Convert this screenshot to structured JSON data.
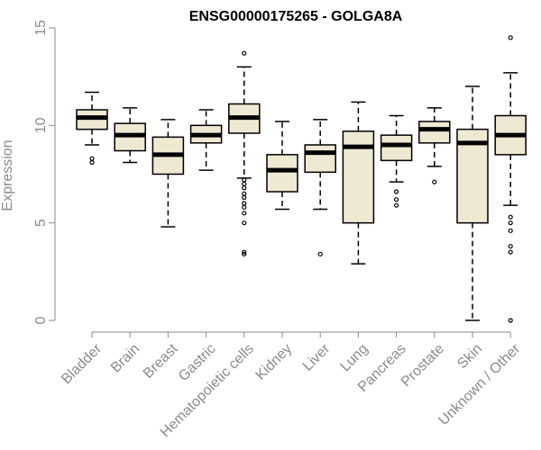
{
  "colors": {
    "box_fill": "#efe8d2",
    "stroke": "#000000",
    "axis_text": "#8a8a8a",
    "axis_line": "#8a8a8a",
    "title": "#000000"
  },
  "chart_data": {
    "type": "boxplot",
    "title": "ENSG00000175265 - GOLGA8A",
    "xlabel": "",
    "ylabel": "Expression",
    "ylim": [
      0,
      15
    ],
    "yticks": [
      0,
      5,
      10,
      15
    ],
    "categories": [
      "Bladder",
      "Brain",
      "Breast",
      "Gastric",
      "Hematopoietic cells",
      "Kidney",
      "Liver",
      "Lung",
      "Pancreas",
      "Prostate",
      "Skin",
      "Unknown / Other"
    ],
    "boxes": [
      {
        "whisker_low": 9.0,
        "q1": 9.8,
        "median": 10.4,
        "q3": 10.8,
        "whisker_high": 11.7,
        "outliers": [
          8.1,
          8.3
        ]
      },
      {
        "whisker_low": 8.1,
        "q1": 8.7,
        "median": 9.5,
        "q3": 10.1,
        "whisker_high": 10.9,
        "outliers": []
      },
      {
        "whisker_low": 4.8,
        "q1": 7.5,
        "median": 8.5,
        "q3": 9.4,
        "whisker_high": 10.3,
        "outliers": []
      },
      {
        "whisker_low": 7.7,
        "q1": 9.1,
        "median": 9.5,
        "q3": 10.0,
        "whisker_high": 10.8,
        "outliers": []
      },
      {
        "whisker_low": 7.3,
        "q1": 9.6,
        "median": 10.4,
        "q3": 11.1,
        "whisker_high": 13.0,
        "outliers": [
          7.2,
          7.0,
          6.8,
          6.5,
          6.3,
          6.0,
          5.8,
          5.5,
          5.0,
          3.4,
          3.5,
          13.7
        ]
      },
      {
        "whisker_low": 5.7,
        "q1": 6.6,
        "median": 7.7,
        "q3": 8.5,
        "whisker_high": 10.2,
        "outliers": []
      },
      {
        "whisker_low": 5.7,
        "q1": 7.6,
        "median": 8.6,
        "q3": 9.0,
        "whisker_high": 10.3,
        "outliers": [
          3.4
        ]
      },
      {
        "whisker_low": 2.9,
        "q1": 5.0,
        "median": 8.9,
        "q3": 9.7,
        "whisker_high": 11.2,
        "outliers": []
      },
      {
        "whisker_low": 7.1,
        "q1": 8.2,
        "median": 9.0,
        "q3": 9.5,
        "whisker_high": 10.5,
        "outliers": [
          6.6,
          6.2,
          5.9
        ]
      },
      {
        "whisker_low": 7.9,
        "q1": 9.1,
        "median": 9.8,
        "q3": 10.2,
        "whisker_high": 10.9,
        "outliers": [
          7.1
        ]
      },
      {
        "whisker_low": 0.0,
        "q1": 5.0,
        "median": 9.1,
        "q3": 9.8,
        "whisker_high": 12.0,
        "outliers": []
      },
      {
        "whisker_low": 5.9,
        "q1": 8.5,
        "median": 9.5,
        "q3": 10.5,
        "whisker_high": 12.7,
        "outliers": [
          5.3,
          5.0,
          4.6,
          3.8,
          3.5,
          0.0,
          14.5
        ]
      }
    ]
  }
}
